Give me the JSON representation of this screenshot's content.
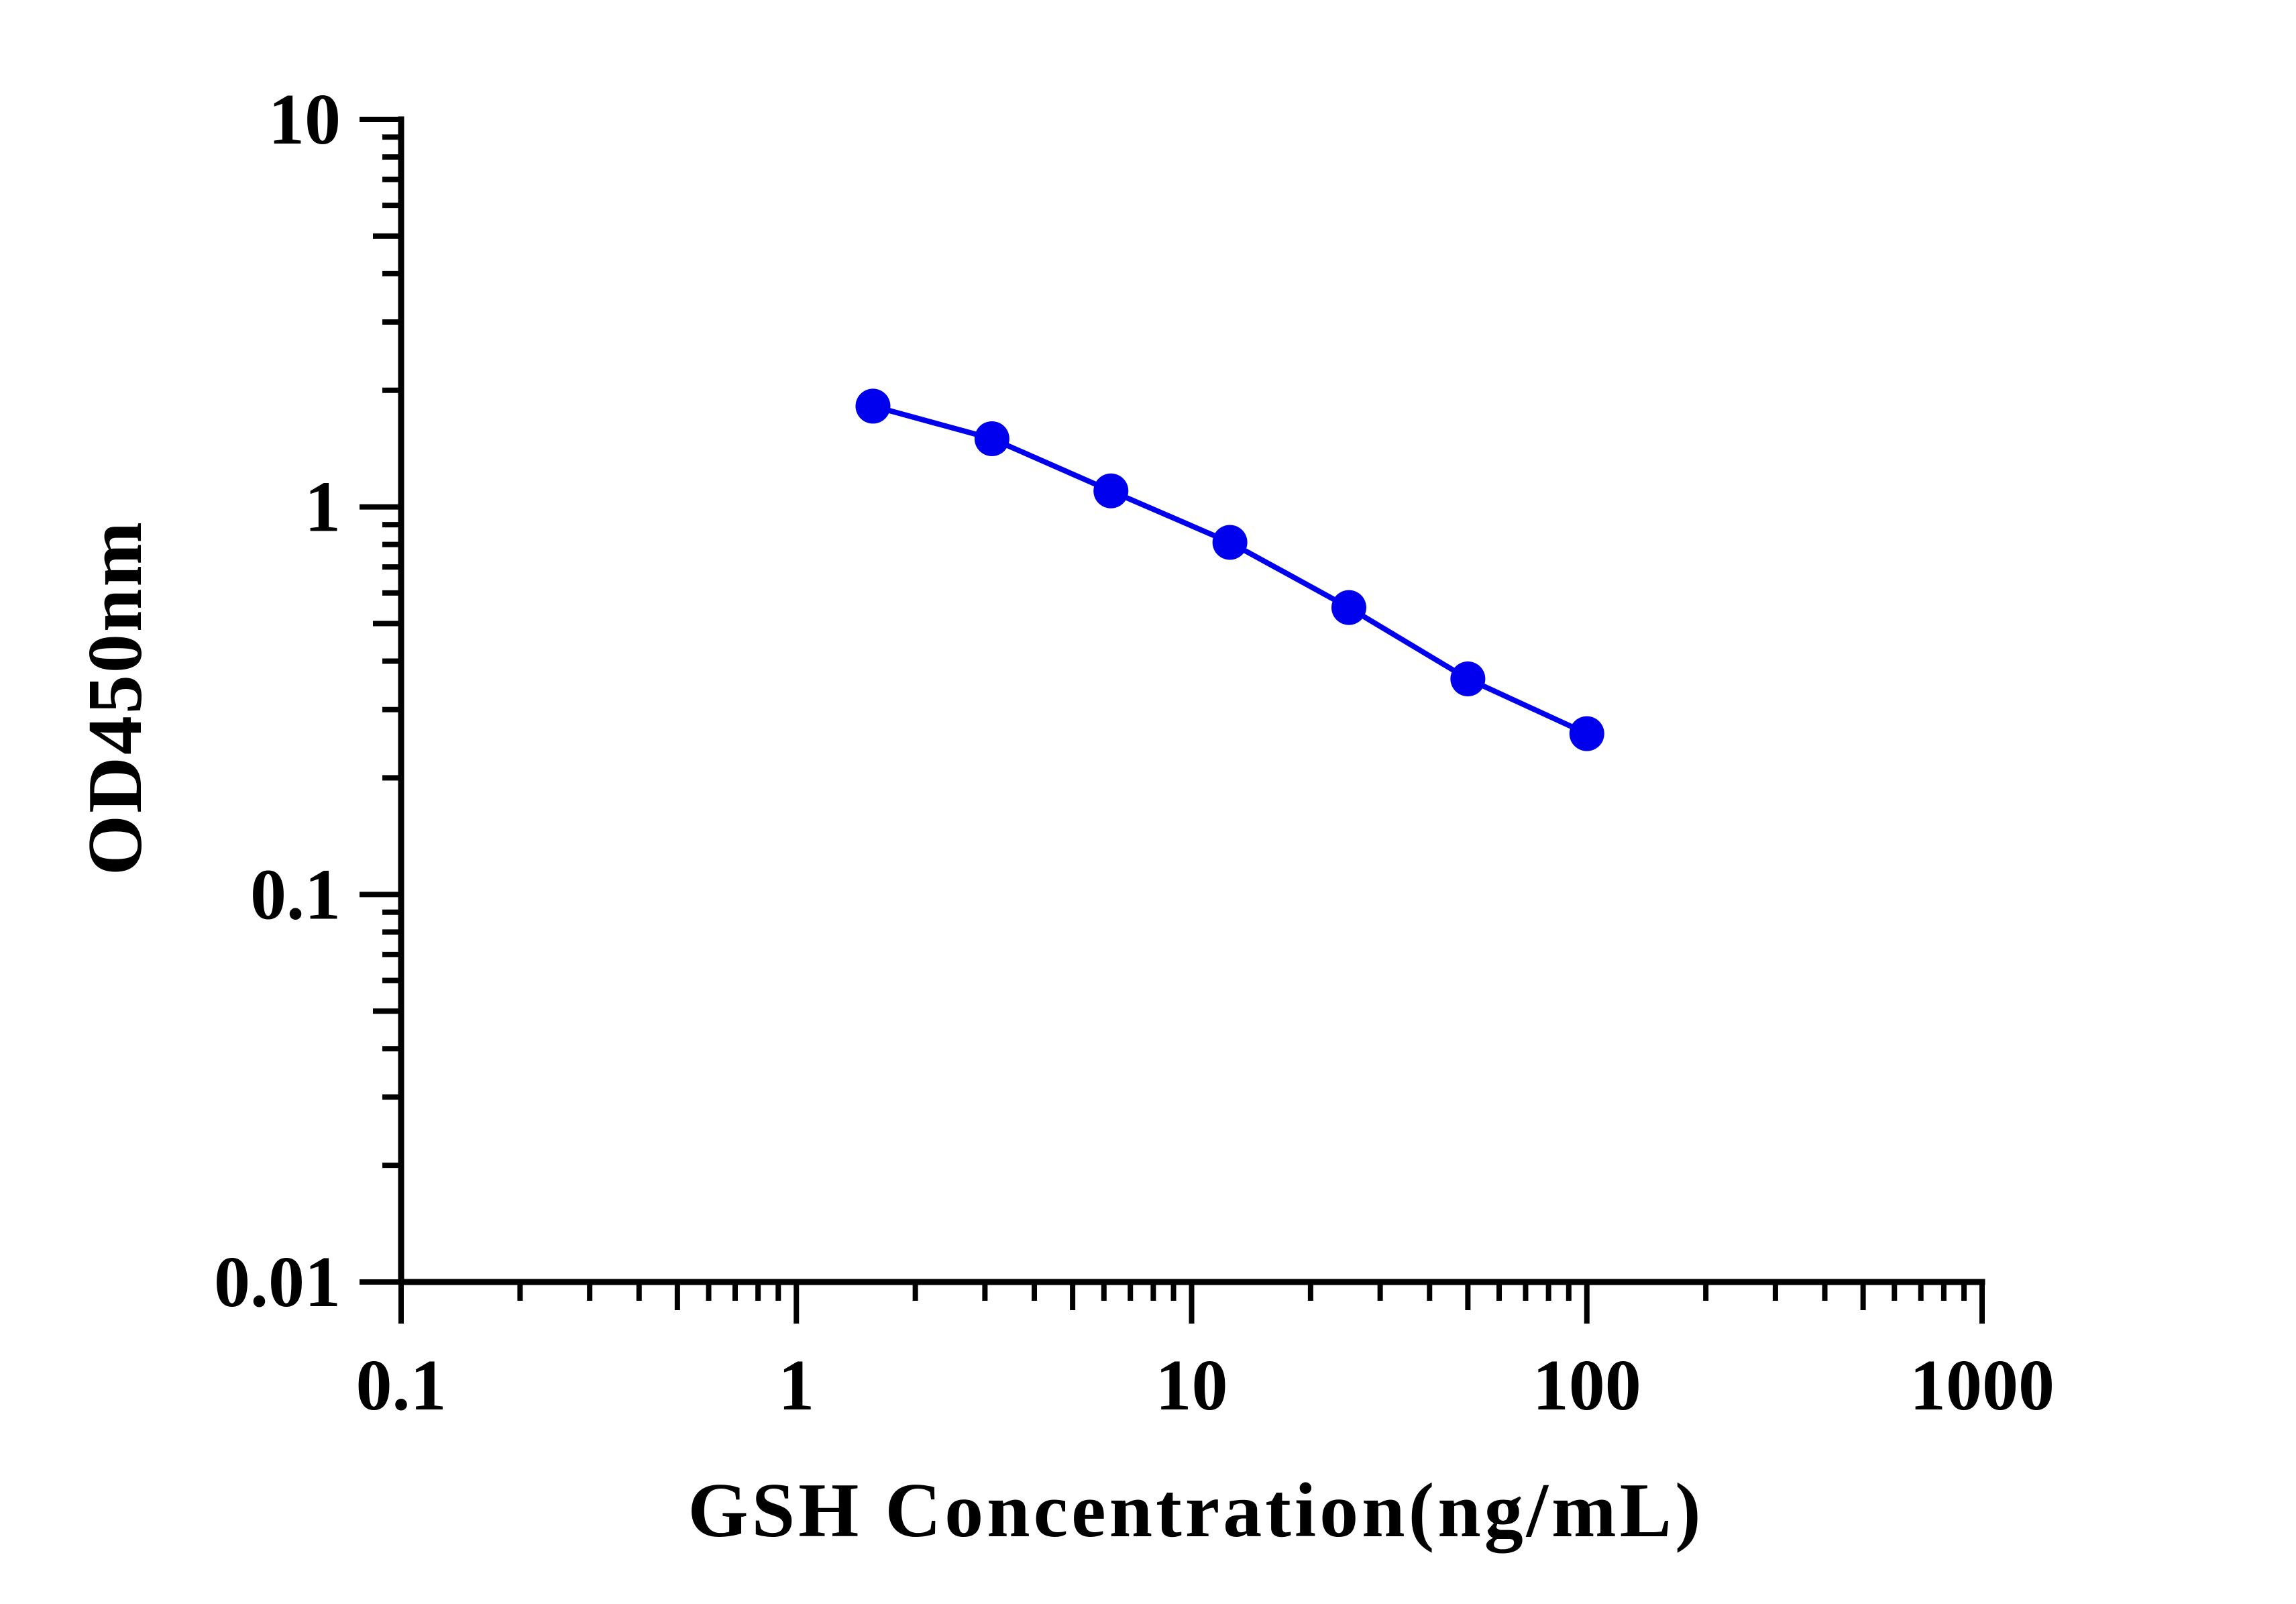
{
  "chart_data": {
    "type": "line",
    "xlabel": "GSH Concentration(ng/mL)",
    "ylabel": "OD450nm",
    "x_scale": "log",
    "y_scale": "log",
    "xlim": [
      0.1,
      1000
    ],
    "ylim": [
      0.01,
      10
    ],
    "x_tick_labels": [
      "0.1",
      "1",
      "10",
      "100",
      "1000"
    ],
    "y_tick_labels": [
      "0.01",
      "0.1",
      "1",
      "10"
    ],
    "grid": false,
    "legend": "none",
    "series": [
      {
        "x": [
          1.5625,
          3.125,
          6.25,
          12.5,
          25,
          50,
          100
        ],
        "y": [
          1.82,
          1.5,
          1.1,
          0.81,
          0.55,
          0.36,
          0.26
        ]
      }
    ],
    "colors": {
      "series": "#0000ee",
      "axis": "#000000"
    }
  }
}
